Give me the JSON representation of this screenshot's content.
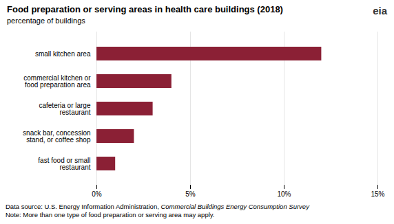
{
  "chart_data": {
    "type": "bar",
    "orientation": "horizontal",
    "title": "Food preparation or serving areas in health care buildings (2018)",
    "subtitle": "percentage of buildings",
    "categories": [
      "fast food or small\nrestaurant",
      "snack bar, concession\nstand, or coffee shop",
      "cafeteria or large\nrestaurant",
      "commercial kitchen or\nfood preparation area",
      "small kitchen area"
    ],
    "values": [
      1.0,
      2.0,
      3.0,
      4.0,
      12.0
    ],
    "color": "#8B2035",
    "xlim": [
      0,
      15
    ],
    "xticks": [
      {
        "value": 0,
        "label": "0%"
      },
      {
        "value": 5,
        "label": "5%"
      },
      {
        "value": 10,
        "label": "10%"
      },
      {
        "value": 15,
        "label": "15%"
      }
    ],
    "grid": true,
    "footnotes": [
      [
        "Data source: U.S. Energy Information Administration, ",
        "Commercial Buildings Energy Consumption Survey"
      ],
      [
        "Note: More than one type of food preparation or serving area may apply."
      ]
    ],
    "logo": "eia"
  }
}
